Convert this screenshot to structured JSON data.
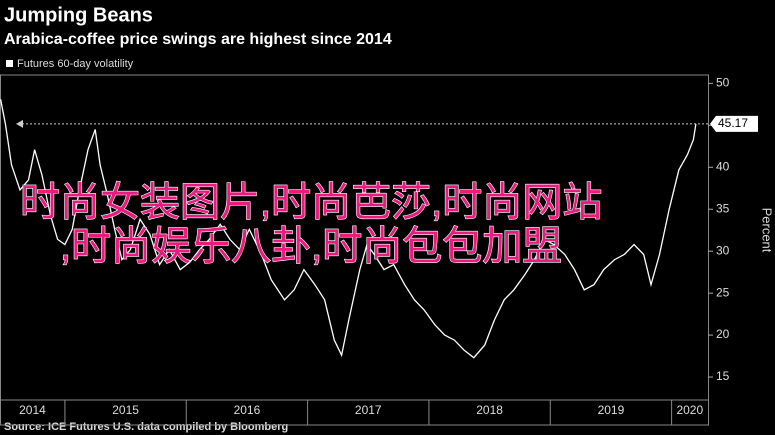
{
  "chart_data": {
    "type": "line",
    "title": "Jumping Beans",
    "subtitle": "Arabica-coffee price swings are highest since 2014",
    "ylabel": "Percent",
    "source": "Source: ICE Futures U.S. data compiled by Bloomberg",
    "overlay_text": [
      "时尚女装图片,时尚芭莎,时尚网站",
      ",时尚娱乐八卦,时尚包包加盟"
    ],
    "last_value": {
      "value": 45.17,
      "label": "45.17"
    },
    "xlim": [
      2014.465,
      2020.3
    ],
    "xticks": [
      2014,
      2015,
      2016,
      2017,
      2018,
      2019,
      2020
    ],
    "ylim": [
      12.5,
      51
    ],
    "yticks": [
      15,
      20,
      25,
      30,
      35,
      40,
      45,
      50
    ],
    "series": [
      {
        "name": "Futures 60-day volatility",
        "color": "#ffffff",
        "x": [
          2014.47,
          2014.51,
          2014.56,
          2014.63,
          2014.7,
          2014.75,
          2014.81,
          2014.88,
          2014.94,
          2015.0,
          2015.06,
          2015.12,
          2015.19,
          2015.25,
          2015.29,
          2015.35,
          2015.41,
          2015.47,
          2015.54,
          2015.62,
          2015.7,
          2015.78,
          2015.86,
          2015.95,
          2016.03,
          2016.11,
          2016.19,
          2016.28,
          2016.36,
          2016.44,
          2016.52,
          2016.62,
          2016.7,
          2016.81,
          2016.89,
          2016.97,
          2017.06,
          2017.14,
          2017.22,
          2017.28,
          2017.34,
          2017.43,
          2017.49,
          2017.55,
          2017.63,
          2017.71,
          2017.8,
          2017.88,
          2017.96,
          2018.05,
          2018.13,
          2018.21,
          2018.29,
          2018.37,
          2018.46,
          2018.54,
          2018.62,
          2018.7,
          2018.79,
          2018.87,
          2018.95,
          2019.03,
          2019.12,
          2019.2,
          2019.28,
          2019.36,
          2019.44,
          2019.53,
          2019.61,
          2019.69,
          2019.77,
          2019.83,
          2019.9,
          2019.98,
          2020.06,
          2020.13,
          2020.18,
          2020.2
        ],
        "values": [
          48.1,
          45.1,
          40.3,
          37.3,
          38.5,
          42.1,
          39.1,
          34.3,
          31.4,
          30.8,
          32.6,
          37.3,
          42.1,
          44.5,
          40.3,
          36.7,
          32.6,
          29.0,
          30.2,
          33.8,
          32.0,
          28.4,
          30.2,
          27.8,
          28.7,
          30.2,
          31.4,
          33.2,
          31.4,
          30.2,
          32.6,
          29.6,
          26.6,
          24.2,
          25.4,
          27.8,
          26.0,
          24.2,
          19.4,
          17.6,
          21.8,
          27.8,
          30.8,
          29.6,
          27.8,
          28.4,
          26.0,
          24.2,
          23.0,
          21.2,
          20.0,
          19.4,
          18.2,
          17.3,
          18.8,
          21.8,
          24.2,
          25.4,
          27.2,
          29.0,
          31.4,
          30.8,
          29.6,
          27.8,
          25.4,
          26.0,
          27.8,
          29.0,
          29.6,
          30.8,
          29.6,
          26.0,
          29.6,
          35.0,
          39.7,
          41.5,
          43.3,
          45.17
        ]
      }
    ]
  }
}
